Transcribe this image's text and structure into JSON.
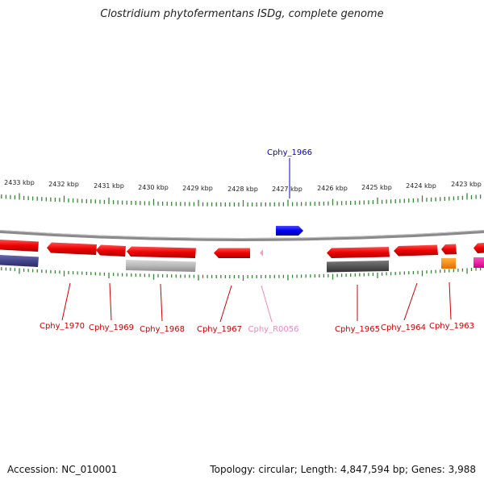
{
  "title": "Clostridium phytofermentans ISDg, complete genome",
  "footer": {
    "accession": "Accession: NC_010001",
    "topology": "Topology: circular; Length: 4,847,594 bp; Genes: 3,988"
  },
  "ruler": {
    "labels": [
      "2433 kbp",
      "2432 kbp",
      "2431 kbp",
      "2430 kbp",
      "2429 kbp",
      "2428 kbp",
      "2427 kbp",
      "2426 kbp",
      "2425 kbp",
      "2424 kbp",
      "2423 kbp"
    ]
  },
  "genes": [
    {
      "name": "Cphy_1966",
      "color": "#0000cc",
      "label_color": "#0000cc"
    },
    {
      "name": "Cphy_1970",
      "color": "#cc0000",
      "label_color": "#cc0000"
    },
    {
      "name": "Cphy_1969",
      "color": "#cc0000",
      "label_color": "#cc0000"
    },
    {
      "name": "Cphy_1968",
      "color": "#cc0000",
      "label_color": "#cc0000"
    },
    {
      "name": "Cphy_1967",
      "color": "#cc0000",
      "label_color": "#cc0000"
    },
    {
      "name": "Cphy_R0056",
      "color": "#ff99cc",
      "label_color": "#ee88bb"
    },
    {
      "name": "Cphy_1965",
      "color": "#cc0000",
      "label_color": "#cc0000"
    },
    {
      "name": "Cphy_1964",
      "color": "#cc0000",
      "label_color": "#cc0000"
    },
    {
      "name": "Cphy_1963",
      "color": "#cc0000",
      "label_color": "#cc0000"
    }
  ]
}
